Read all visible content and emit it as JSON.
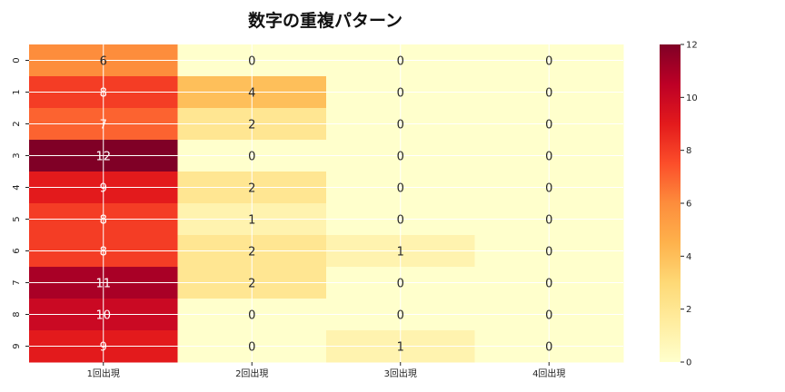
{
  "chart_data": {
    "type": "heatmap",
    "title": "数字の重複パターン",
    "x_categories": [
      "1回出現",
      "2回出現",
      "3回出現",
      "4回出現"
    ],
    "y_categories": [
      "0",
      "1",
      "2",
      "3",
      "4",
      "5",
      "6",
      "7",
      "8",
      "9"
    ],
    "values": [
      [
        6,
        0,
        0,
        0
      ],
      [
        8,
        4,
        0,
        0
      ],
      [
        7,
        2,
        0,
        0
      ],
      [
        12,
        0,
        0,
        0
      ],
      [
        9,
        2,
        0,
        0
      ],
      [
        8,
        1,
        0,
        0
      ],
      [
        8,
        2,
        1,
        0
      ],
      [
        11,
        2,
        0,
        0
      ],
      [
        10,
        0,
        0,
        0
      ],
      [
        9,
        0,
        1,
        0
      ]
    ],
    "colorbar": {
      "min": 0,
      "max": 12,
      "ticks": [
        "0",
        "2",
        "4",
        "6",
        "8",
        "10",
        "12"
      ]
    },
    "colormap": "YlOrRd",
    "grid": true,
    "annotations": true
  }
}
